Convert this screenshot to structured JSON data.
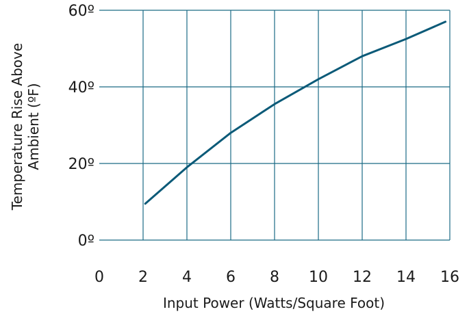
{
  "chart_data": {
    "type": "line",
    "title": "",
    "xlabel": "Input Power (Watts/Square Foot)",
    "ylabel_lines": [
      "Temperature Rise Above",
      "Ambient (ºF)"
    ],
    "xlim": [
      0,
      16
    ],
    "ylim": [
      0,
      60
    ],
    "x_ticks": [
      0,
      2,
      4,
      6,
      8,
      10,
      12,
      14,
      16
    ],
    "x_tick_labels": [
      "0",
      "2",
      "4",
      "6",
      "8",
      "10",
      "12",
      "14",
      "16"
    ],
    "y_ticks": [
      0,
      20,
      40,
      60
    ],
    "y_tick_labels": [
      "0º",
      "20º",
      "40º",
      "60º"
    ],
    "grid": true,
    "series": [
      {
        "x": [
          2.1,
          4,
          6,
          8,
          10,
          12,
          14,
          15.8
        ],
        "y": [
          9.5,
          19,
          28,
          35.5,
          42,
          48,
          52.5,
          57
        ]
      }
    ],
    "colors": {
      "line": "#0b5a78",
      "grid": "#1a6a85",
      "text": "#1a1a1a"
    }
  }
}
